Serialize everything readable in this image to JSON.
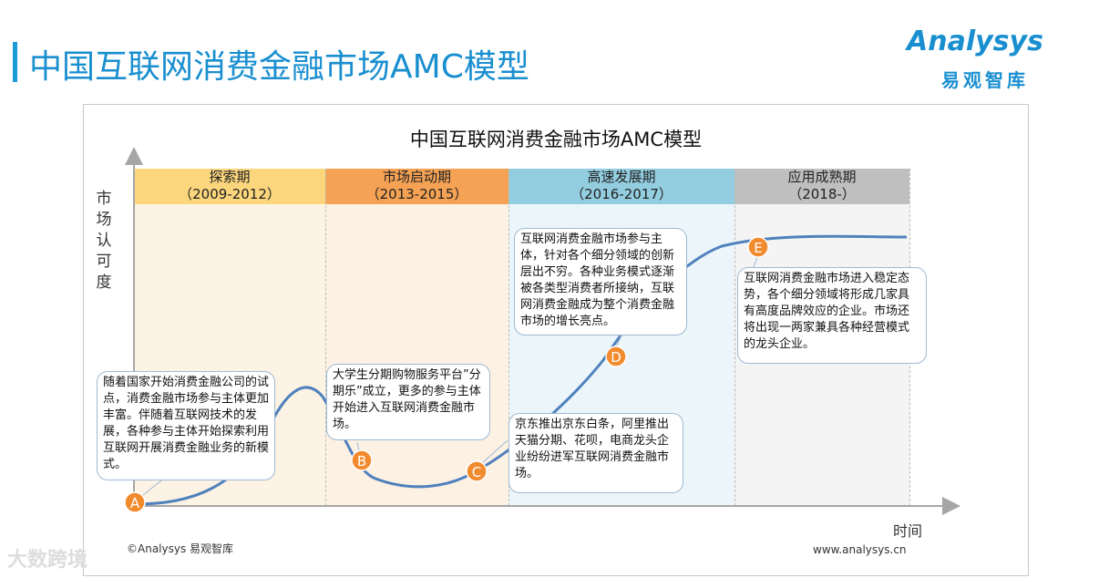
{
  "page": {
    "title": "中国互联网消费金融市场AMC模型",
    "logo_text": "Analysys",
    "logo_sub": "易观智库",
    "watermark": "大数跨境"
  },
  "diagram": {
    "title": "中国互联网消费金融市场AMC模型",
    "y_axis_label": "市场认可度",
    "x_axis_label": "时间",
    "copyright": "©Analysys 易观智库",
    "website": "www.analysys.cn",
    "colors": {
      "curve": "#4f81bd",
      "marker": "#f28a2e",
      "accent": "#1a8fd0"
    },
    "stages": [
      {
        "name": "探索期",
        "period": "（2009-2012）",
        "color": "#fbd67c",
        "bg": "#fcf3e4"
      },
      {
        "name": "市场启动期",
        "period": "（2013-2015）",
        "color": "#f5a254",
        "bg": "#fdf1e4"
      },
      {
        "name": "高速发展期",
        "period": "（2016-2017）",
        "color": "#93cde0",
        "bg": "#ecf6fa"
      },
      {
        "name": "应用成熟期",
        "period": "（2018-）",
        "color": "#bfbfbf",
        "bg": "#f4f4f4"
      }
    ],
    "points": [
      {
        "label": "A",
        "text": "随着国家开始消费金融公司的试点，消费金融市场参与主体更加丰富。伴随着互联网技术的发展，各种参与主体开始探索利用互联网开展消费金融业务的新模式。"
      },
      {
        "label": "B",
        "text": "大学生分期购物服务平台”分期乐”成立，更多的参与主体开始进入互联网消费金融市场。"
      },
      {
        "label": "C",
        "text": "京东推出京东白条，阿里推出天猫分期、花呗，电商龙头企业纷纷进军互联网消费金融市场。"
      },
      {
        "label": "D",
        "text": "互联网消费金融市场参与主体，针对各个细分领域的创新层出不穷。各种业务模式逐渐被各类型消费者所接纳，互联网消费金融成为整个消费金融市场的增长亮点。"
      },
      {
        "label": "E",
        "text": "互联网消费金融市场进入稳定态势，各个细分领域将形成几家具有高度品牌效应的企业。市场还将出现一两家兼具各种经营模式的龙头企业。"
      }
    ]
  }
}
